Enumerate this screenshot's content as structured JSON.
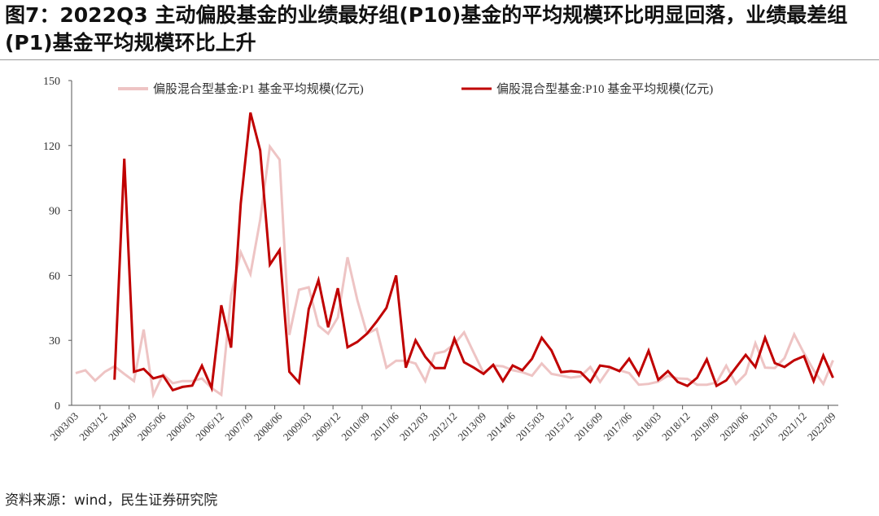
{
  "title": "图7：2022Q3  主动偏股基金的业绩最好组(P10)基金的平均规模环比明显回落，业绩最差组(P1)基金平均规模环比上升",
  "source": "资料来源：wind，民生证券研究院",
  "chart_data": {
    "type": "line",
    "title": "",
    "xlabel": "",
    "ylabel": "",
    "ylim": [
      0,
      150
    ],
    "yticks": [
      "0",
      "30",
      "60",
      "90",
      "120",
      "150"
    ],
    "grid": false,
    "legend_position": "top",
    "xtick_labels": [
      "2003/03",
      "2003/12",
      "2004/09",
      "2005/06",
      "2006/03",
      "2006/12",
      "2007/09",
      "2008/06",
      "2009/03",
      "2009/12",
      "2010/09",
      "2011/06",
      "2012/03",
      "2012/12",
      "2013/09",
      "2014/06",
      "2015/03",
      "2015/12",
      "2016/09",
      "2017/06",
      "2018/03",
      "2018/12",
      "2019/09",
      "2020/06",
      "2021/03",
      "2021/12",
      "2022/09"
    ],
    "x_start": "2003/03",
    "x_end": "2022/09",
    "x_frequency": "quarterly",
    "series": [
      {
        "name": "偏股混合型基金:P1 基金平均规模(亿元)",
        "color": "#eec4c4",
        "values": [
          14.9,
          16.2,
          11.4,
          15.5,
          18,
          14.5,
          11.2,
          35,
          4.9,
          14.3,
          10.2,
          11.2,
          11.2,
          12.4,
          8,
          4.9,
          50.6,
          70.7,
          60.6,
          85.7,
          119.5,
          113.5,
          32.5,
          53.4,
          54.5,
          36.8,
          33.1,
          40.6,
          68.4,
          48.7,
          33.1,
          35.3,
          17.4,
          20.6,
          20.6,
          19.3,
          11.2,
          23.9,
          24.9,
          28.3,
          33.7,
          24.3,
          15,
          18.4,
          18,
          16.2,
          15.3,
          13.7,
          19.3,
          14.5,
          13.7,
          12.8,
          13.4,
          17.7,
          10.8,
          17.2,
          16.2,
          14.9,
          9.5,
          9.9,
          10.9,
          13.7,
          12.4,
          12.2,
          9.5,
          9.5,
          10.5,
          18.3,
          9.9,
          14.5,
          28.7,
          17.4,
          17.2,
          21.8,
          32.8,
          24.1,
          16.2,
          9.9,
          20.8
        ]
      },
      {
        "name": "偏股混合型基金:P10 基金平均规模(亿元)",
        "color": "#c00000",
        "values": [
          null,
          null,
          null,
          null,
          11.8,
          113.9,
          15.5,
          16.8,
          12.4,
          13.7,
          7,
          8.5,
          9.1,
          18.3,
          8,
          46.2,
          26.6,
          93.2,
          135.2,
          117.7,
          65,
          71.7,
          15.5,
          10.5,
          44.4,
          57.8,
          36,
          54.1,
          26.8,
          29.3,
          33.1,
          38.7,
          45,
          60,
          17.4,
          30,
          22.4,
          17.2,
          17.2,
          30.8,
          19.9,
          17.4,
          14.5,
          18.7,
          11.2,
          18.4,
          16.2,
          21.5,
          31.2,
          25.3,
          15.3,
          15.8,
          15.3,
          10.8,
          18.4,
          17.7,
          15.8,
          21.5,
          14,
          25.2,
          11.8,
          15.8,
          10.8,
          9,
          12.7,
          21.2,
          9,
          11.5,
          17.4,
          23.3,
          17.7,
          31.2,
          19.5,
          17.7,
          20.8,
          22.7,
          11.2,
          23,
          12.7
        ]
      }
    ]
  }
}
